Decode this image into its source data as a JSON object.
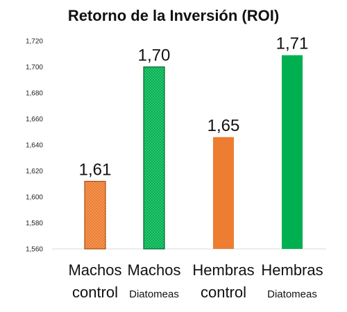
{
  "chart_data": {
    "type": "bar",
    "title": "Retorno de la Inversión (ROI)",
    "categories": [
      {
        "line1": "Machos",
        "line2": "control"
      },
      {
        "line1": "Machos",
        "line2": "Diatomeas"
      },
      {
        "line1": "Hembras",
        "line2": "control"
      },
      {
        "line1": "Hembras",
        "line2": "Diatomeas"
      }
    ],
    "values": [
      1.612,
      1.7,
      1.646,
      1.709
    ],
    "data_labels": [
      "1,61",
      "1,70",
      "1,65",
      "1,71"
    ],
    "bar_colors": [
      "#ED7D31",
      "#00B050",
      "#ED7D31",
      "#00B050"
    ],
    "bar_patterns": [
      "dotted",
      "dotted",
      "solid",
      "solid"
    ],
    "ylim": [
      1.56,
      1.72
    ],
    "yticks": [
      1.56,
      1.58,
      1.6,
      1.62,
      1.64,
      1.66,
      1.68,
      1.7,
      1.72
    ],
    "ytick_labels": [
      "1,560",
      "1,580",
      "1,600",
      "1,620",
      "1,640",
      "1,660",
      "1,680",
      "1,700",
      "1,720"
    ],
    "grid": false,
    "legend": "none"
  }
}
